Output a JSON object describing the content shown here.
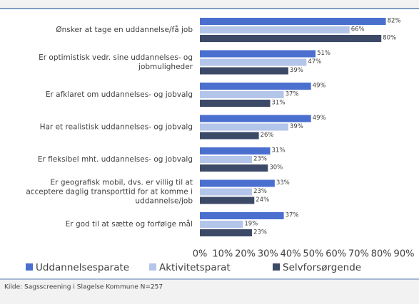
{
  "chart_data": {
    "type": "hbar",
    "categories": [
      "Ønsker at tage en uddannelse/få job",
      "Er optimistisk vedr. sine uddannelses- og\njobmuligheder",
      "Er afklaret om uddannelses- og jobvalg",
      "Har et realistisk uddannelses- og jobvalg",
      "Er fleksibel mht. uddannelses- og jobvalg",
      "Er geografisk mobil, dvs. er villig til at\nacceptere daglig transporttid for at komme i\nuddannelse/job",
      "Er god til at sætte og forfølge mål"
    ],
    "series": [
      {
        "name": "Uddannelsesparate",
        "color": "#4a6fcf",
        "values": [
          82,
          51,
          49,
          49,
          31,
          33,
          37
        ],
        "value_labels": [
          "82%",
          "51%",
          "49%",
          "49%",
          "31%",
          "33%",
          "37%"
        ]
      },
      {
        "name": "Aktivitetsparat",
        "color": "#b4c5ea",
        "values": [
          66,
          47,
          37,
          39,
          23,
          23,
          19
        ],
        "value_labels": [
          "66%",
          "47%",
          "37%",
          "39%",
          "23%",
          "23%",
          "19%"
        ]
      },
      {
        "name": "Selvforsørgende",
        "color": "#3c4a68",
        "values": [
          80,
          39,
          31,
          26,
          30,
          24,
          23
        ],
        "value_labels": [
          "80%",
          "39%",
          "31%",
          "26%",
          "30%",
          "24%",
          "23%"
        ]
      }
    ],
    "xlim": [
      0,
      90
    ],
    "xticks": [
      {
        "value": 0,
        "label": "0%"
      },
      {
        "value": 10,
        "label": "10%"
      },
      {
        "value": 20,
        "label": "20%"
      },
      {
        "value": 30,
        "label": "30%"
      },
      {
        "value": 40,
        "label": "40%"
      },
      {
        "value": 50,
        "label": "50%"
      },
      {
        "value": 60,
        "label": "60%"
      },
      {
        "value": 70,
        "label": "70%"
      },
      {
        "value": 80,
        "label": "80%"
      },
      {
        "value": 90,
        "label": "90%"
      }
    ],
    "legend": "bottom",
    "source": "Kilde: Sagsscreening i Slagelse Kommune  N=257"
  }
}
